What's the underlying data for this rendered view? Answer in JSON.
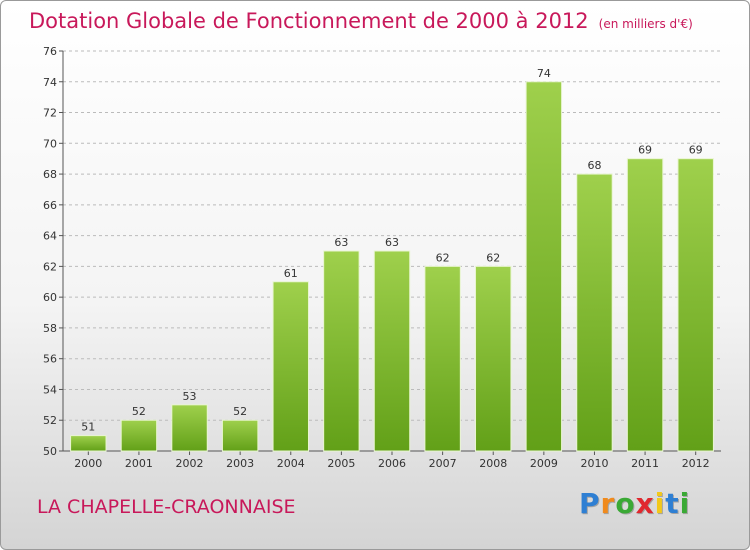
{
  "chart_data": {
    "type": "bar",
    "title": "Dotation Globale de Fonctionnement de 2000 à 2012",
    "unit_note": "(en milliers d'€)",
    "categories": [
      "2000",
      "2001",
      "2002",
      "2003",
      "2004",
      "2005",
      "2006",
      "2007",
      "2008",
      "2009",
      "2010",
      "2011",
      "2012"
    ],
    "values": [
      51,
      52,
      53,
      52,
      61,
      63,
      63,
      62,
      62,
      74,
      68,
      69,
      69
    ],
    "ylim": [
      50,
      76
    ],
    "yticks": [
      50,
      52,
      54,
      56,
      58,
      60,
      62,
      64,
      66,
      68,
      70,
      72,
      74,
      76
    ],
    "xlabel": "",
    "ylabel": "",
    "grid": true,
    "colors": {
      "bar_light": "#9fd04c",
      "bar_dark": "#62a018",
      "grid": "#bbbbbb"
    }
  },
  "footer": {
    "commune": "LA CHAPELLE-CRAONNAISE"
  },
  "logo": {
    "letters": [
      "P",
      "r",
      "o",
      "x",
      "i",
      "t",
      "i"
    ],
    "colors": [
      "#2e7fd3",
      "#f08a1c",
      "#3aa935",
      "#e0282e",
      "#f2c81a",
      "#2e7fd3",
      "#3aa935"
    ]
  },
  "theme": {
    "accent": "#c8185a"
  }
}
